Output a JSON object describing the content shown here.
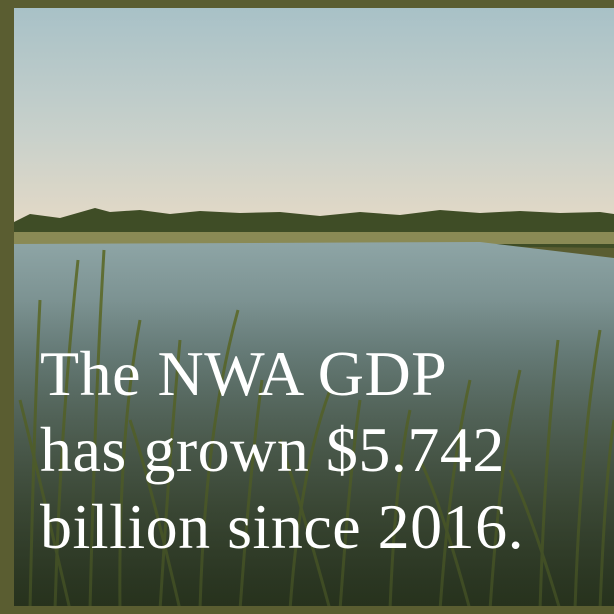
{
  "headline": {
    "lines": [
      "The NWA GDP",
      "has grown $5.742",
      "billion since 2016."
    ]
  }
}
